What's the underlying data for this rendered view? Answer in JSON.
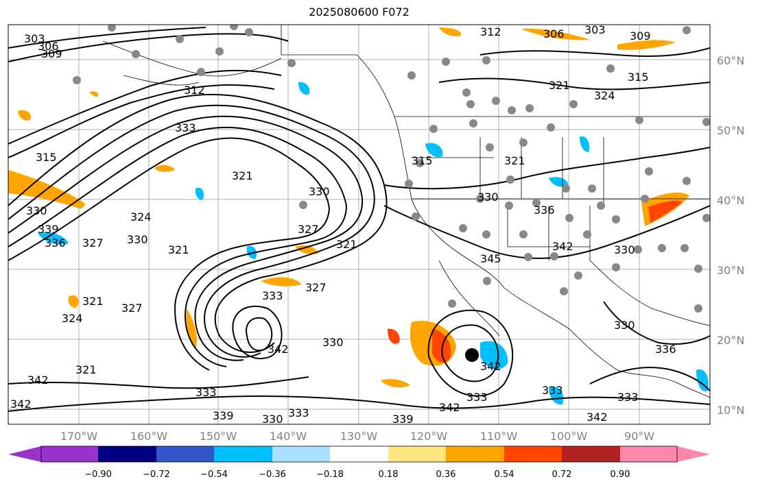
{
  "title": "2025080600 F072",
  "map": {
    "lat_labels": [
      "60°N",
      "50°N",
      "40°N",
      "30°N",
      "20°N",
      "10°N"
    ],
    "lon_labels": [
      "170°W",
      "160°W",
      "150°W",
      "140°W",
      "130°W",
      "120°W",
      "110°W",
      "100°W",
      "90°W"
    ],
    "contour_labels": [
      "303",
      "306",
      "309",
      "312",
      "315",
      "321",
      "324",
      "327",
      "330",
      "333",
      "336",
      "339",
      "342",
      "345"
    ]
  },
  "colorbar": {
    "colors": [
      "#9933cc",
      "#000080",
      "#3355cc",
      "#00bfff",
      "#aadfff",
      "#ffffff",
      "#ffe680",
      "#ffa500",
      "#ff4500",
      "#b22222",
      "#ff88aa"
    ],
    "ticks": [
      "−0.90",
      "−0.72",
      "−0.54",
      "−0.36",
      "−0.18",
      "0.18",
      "0.36",
      "0.54",
      "0.72",
      "0.90"
    ]
  }
}
